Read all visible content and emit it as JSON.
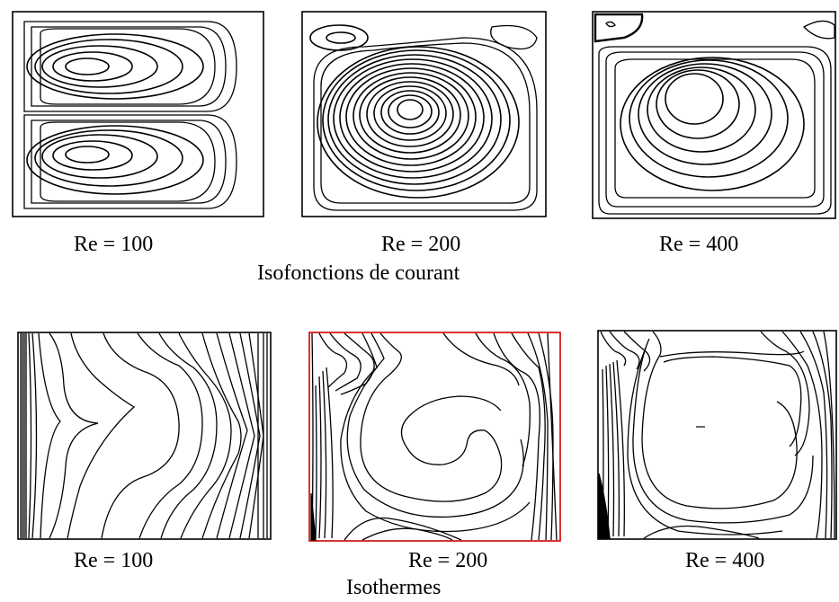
{
  "streamlines": {
    "section_title": "Isofonctions de courant",
    "panels": [
      {
        "caption": "Re = 100"
      },
      {
        "caption": "Re = 200"
      },
      {
        "caption": "Re = 400"
      }
    ]
  },
  "isotherms": {
    "section_title": "Isothermes",
    "panels": [
      {
        "caption": "Re = 100"
      },
      {
        "caption": "Re = 200",
        "frame_color": "#d00000"
      },
      {
        "caption": "Re = 400"
      }
    ]
  }
}
